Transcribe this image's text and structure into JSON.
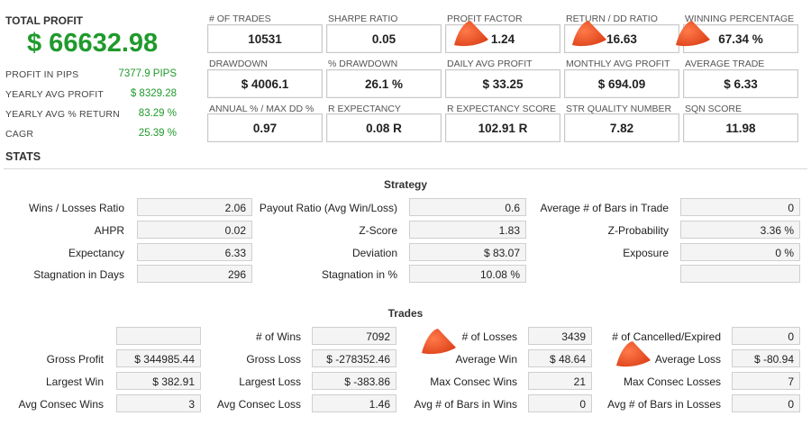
{
  "summary": {
    "total_profit_label": "TOTAL PROFIT",
    "total_profit_value": "$ 66632.98",
    "rows": [
      {
        "label": "PROFIT IN PIPS",
        "value": "7377.9 PIPS"
      },
      {
        "label": "YEARLY AVG PROFIT",
        "value": "$ 8329.28"
      },
      {
        "label": "YEARLY AVG % RETURN",
        "value": "83.29 %"
      },
      {
        "label": "CAGR",
        "value": "25.39 %"
      }
    ]
  },
  "metrics": [
    [
      {
        "label": "# OF TRADES",
        "value": "10531"
      },
      {
        "label": "SHARPE RATIO",
        "value": "0.05"
      },
      {
        "label": "PROFIT FACTOR",
        "value": "1.24"
      },
      {
        "label": "RETURN / DD RATIO",
        "value": "16.63"
      },
      {
        "label": "WINNING PERCENTAGE",
        "value": "67.34 %"
      }
    ],
    [
      {
        "label": "DRAWDOWN",
        "value": "$ 4006.1"
      },
      {
        "label": "% DRAWDOWN",
        "value": "26.1 %"
      },
      {
        "label": "DAILY AVG PROFIT",
        "value": "$ 33.25"
      },
      {
        "label": "MONTHLY AVG PROFIT",
        "value": "$ 694.09"
      },
      {
        "label": "AVERAGE TRADE",
        "value": "$ 6.33"
      }
    ],
    [
      {
        "label": "ANNUAL % / MAX DD %",
        "value": "0.97"
      },
      {
        "label": "R EXPECTANCY",
        "value": "0.08 R"
      },
      {
        "label": "R EXPECTANCY SCORE",
        "value": "102.91 R"
      },
      {
        "label": "STR QUALITY NUMBER",
        "value": "7.82"
      },
      {
        "label": "SQN SCORE",
        "value": "11.98"
      }
    ]
  ],
  "stats_title": "STATS",
  "strategy": {
    "title": "Strategy",
    "rows": [
      [
        {
          "label": "Wins / Losses Ratio",
          "value": "2.06"
        },
        {
          "label": "Payout Ratio (Avg Win/Loss)",
          "value": "0.6"
        },
        {
          "label": "Average # of Bars in Trade",
          "value": "0"
        }
      ],
      [
        {
          "label": "AHPR",
          "value": "0.02"
        },
        {
          "label": "Z-Score",
          "value": "1.83"
        },
        {
          "label": "Z-Probability",
          "value": "3.36 %"
        }
      ],
      [
        {
          "label": "Expectancy",
          "value": "6.33"
        },
        {
          "label": "Deviation",
          "value": "$ 83.07"
        },
        {
          "label": "Exposure",
          "value": "0 %"
        }
      ],
      [
        {
          "label": "Stagnation in Days",
          "value": "296"
        },
        {
          "label": "Stagnation in %",
          "value": "10.08 %"
        },
        {
          "label": "",
          "value": ""
        }
      ]
    ]
  },
  "trades": {
    "title": "Trades",
    "rows": [
      [
        {
          "label": "",
          "value": ""
        },
        {
          "label": "# of Wins",
          "value": "7092"
        },
        {
          "label": "# of Losses",
          "value": "3439"
        },
        {
          "label": "# of Cancelled/Expired",
          "value": "0"
        }
      ],
      [
        {
          "label": "Gross Profit",
          "value": "$ 344985.44"
        },
        {
          "label": "Gross Loss",
          "value": "$ -278352.46"
        },
        {
          "label": "Average Win",
          "value": "$ 48.64"
        },
        {
          "label": "Average Loss",
          "value": "$ -80.94"
        }
      ],
      [
        {
          "label": "Largest Win",
          "value": "$ 382.91"
        },
        {
          "label": "Largest Loss",
          "value": "$ -383.86"
        },
        {
          "label": "Max Consec Wins",
          "value": "21"
        },
        {
          "label": "Max Consec Losses",
          "value": "7"
        }
      ],
      [
        {
          "label": "Avg Consec Wins",
          "value": "3"
        },
        {
          "label": "Avg Consec Loss",
          "value": "1.46"
        },
        {
          "label": "Avg # of Bars in Wins",
          "value": "0"
        },
        {
          "label": "Avg # of Bars in Losses",
          "value": "0"
        }
      ]
    ]
  },
  "colors": {
    "accent_green": "#1f9a2c",
    "marker": "#e8461c"
  },
  "markers": [
    "cone-marker",
    "cone-marker",
    "cone-marker",
    "cone-marker",
    "cone-marker"
  ]
}
